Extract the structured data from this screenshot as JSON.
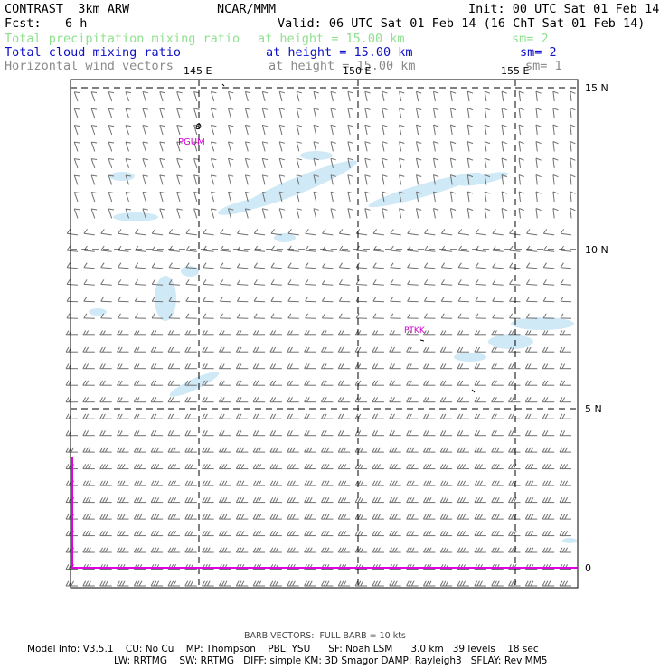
{
  "header": {
    "model": "CONTRAST  3km ARW",
    "org": "NCAR/MMM",
    "init": "Init: 00 UTC Sat 01 Feb 14",
    "fcst_label": "Fcst:",
    "fcst_value": "6 h",
    "valid": "Valid: 06 UTC Sat 01 Feb 14 (16 ChT Sat 01 Feb 14)"
  },
  "fields": [
    {
      "name": "Total precipitation mixing ratio",
      "height": "at height = 15.00 km",
      "sm": "sm= 2",
      "color": "#8fe08f"
    },
    {
      "name": "Total cloud mixing ratio",
      "height": "at height = 15.00 km",
      "sm": "sm= 2",
      "color": "#1010c8"
    },
    {
      "name": "Horizontal wind vectors",
      "height": "at height = 15.00 km",
      "sm": "sm= 1",
      "color": "#8a8a8a"
    }
  ],
  "map": {
    "lon_labels": [
      "145 E",
      "150 E",
      "155 E"
    ],
    "lat_labels": [
      "15 N",
      "10 N",
      "5 N",
      "0"
    ],
    "stations": [
      {
        "id": "PGUM",
        "color": "#d000d0"
      },
      {
        "id": "PTKK",
        "color": "#d000d0"
      }
    ],
    "cloud_color": "#cfe9f7",
    "barb_color": "#707070",
    "boundary_color": "#e000e0"
  },
  "footer": {
    "barb_note": "BARB VECTORS:  FULL BARB = 10 kts",
    "line1": "Model Info: V3.5.1    CU: No Cu    MP: Thompson    PBL: YSU      SF: Noah LSM      3.0 km   39 levels    18 sec",
    "line2": "LW: RRTMG    SW: RRTMG   DIFF: simple KM: 3D Smagor DAMP: Rayleigh3   SFLAY: Rev MM5"
  }
}
